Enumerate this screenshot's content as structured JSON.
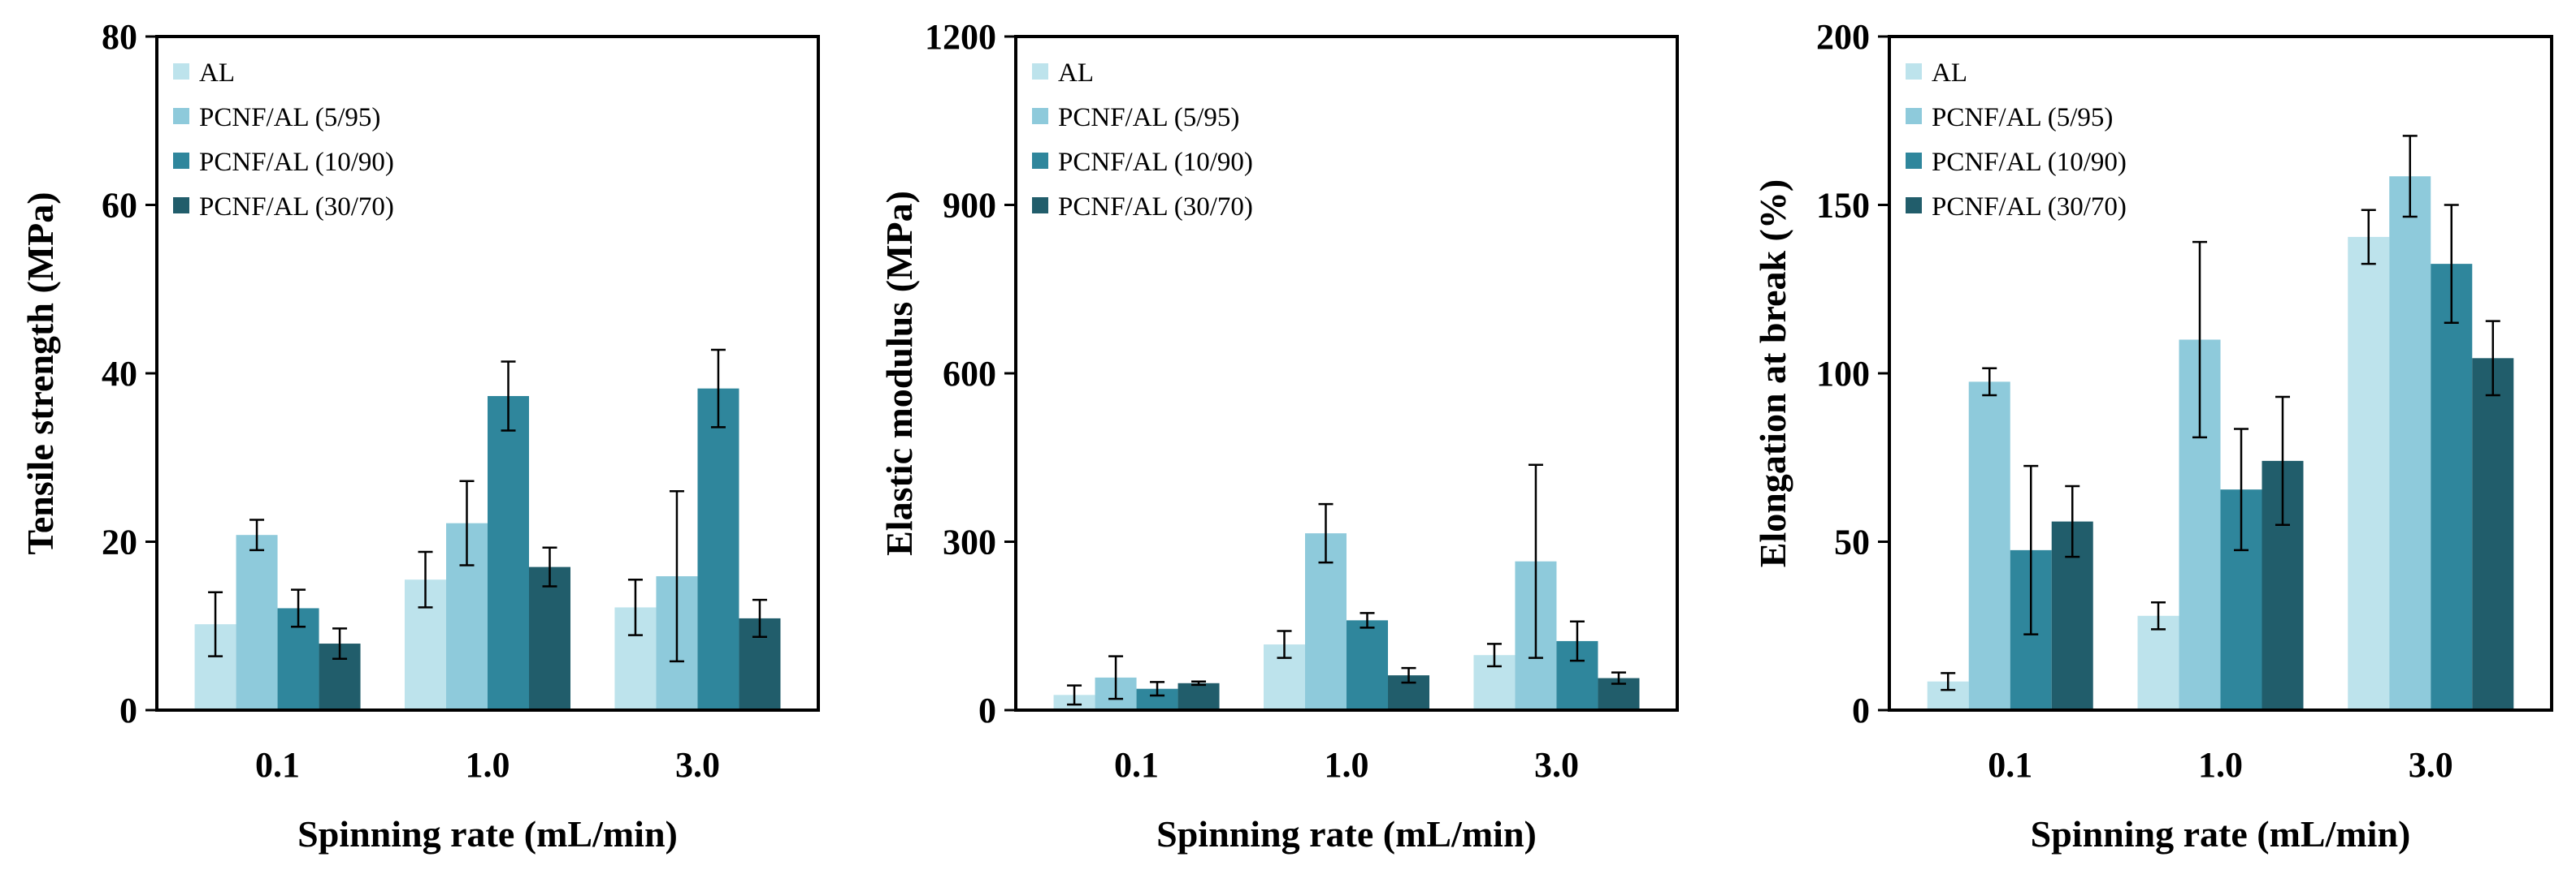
{
  "chart_data": [
    {
      "type": "bar",
      "categories": [
        "0.1",
        "1.0",
        "3.0"
      ],
      "series": [
        {
          "name": "AL",
          "values": [
            10.2,
            15.5,
            12.2
          ],
          "errors": [
            3.8,
            3.3,
            3.3
          ]
        },
        {
          "name": "PCNF/AL (5/95)",
          "values": [
            20.8,
            22.2,
            15.9
          ],
          "errors": [
            1.8,
            5.0,
            10.1
          ]
        },
        {
          "name": "PCNF/AL (10/90)",
          "values": [
            12.1,
            37.3,
            38.2
          ],
          "errors": [
            2.2,
            4.1,
            4.6
          ]
        },
        {
          "name": "PCNF/AL (30/70)",
          "values": [
            7.9,
            17.0,
            10.9
          ],
          "errors": [
            1.8,
            2.3,
            2.2
          ]
        }
      ],
      "xlabel": "Spinning rate (mL/min)",
      "ylabel": "Tensile strength (MPa)",
      "ylim": [
        0,
        80
      ],
      "yticks": [
        "0",
        "20",
        "40",
        "60",
        "80"
      ],
      "legend": "top-left",
      "grid": false
    },
    {
      "type": "bar",
      "categories": [
        "0.1",
        "1.0",
        "3.0"
      ],
      "series": [
        {
          "name": "AL",
          "values": [
            27,
            117,
            98
          ],
          "errors": [
            17,
            24,
            20
          ]
        },
        {
          "name": "PCNF/AL (5/95)",
          "values": [
            58,
            315,
            265
          ],
          "errors": [
            38,
            52,
            172
          ]
        },
        {
          "name": "PCNF/AL (10/90)",
          "values": [
            38,
            160,
            123
          ],
          "errors": [
            12,
            13,
            35
          ]
        },
        {
          "name": "PCNF/AL (30/70)",
          "values": [
            48,
            62,
            57
          ],
          "errors": [
            3,
            13,
            10
          ]
        }
      ],
      "xlabel": "Spinning rate (mL/min)",
      "ylabel": "Elastic modulus (MPa)",
      "ylim": [
        0,
        1200
      ],
      "yticks": [
        "0",
        "300",
        "600",
        "900",
        "1200"
      ],
      "legend": "top-left",
      "grid": false
    },
    {
      "type": "bar",
      "categories": [
        "0.1",
        "1.0",
        "3.0"
      ],
      "series": [
        {
          "name": "AL",
          "values": [
            8.5,
            28,
            140.5
          ],
          "errors": [
            2.5,
            4,
            8
          ]
        },
        {
          "name": "PCNF/AL (5/95)",
          "values": [
            97.5,
            110,
            158.5
          ],
          "errors": [
            4,
            29,
            12
          ]
        },
        {
          "name": "PCNF/AL (10/90)",
          "values": [
            47.5,
            65.5,
            132.5
          ],
          "errors": [
            25,
            18,
            17.5
          ]
        },
        {
          "name": "PCNF/AL (30/70)",
          "values": [
            56,
            74,
            104.5
          ],
          "errors": [
            10.5,
            19,
            11
          ]
        }
      ],
      "xlabel": "Spinning rate (mL/min)",
      "ylabel": "Elongation at break (%)",
      "ylim": [
        0,
        200
      ],
      "yticks": [
        "0",
        "50",
        "100",
        "150",
        "200"
      ],
      "legend": "top-left",
      "grid": false
    }
  ],
  "colors": [
    "#bde3ec",
    "#8ecadb",
    "#2f869c",
    "#215d6b"
  ]
}
